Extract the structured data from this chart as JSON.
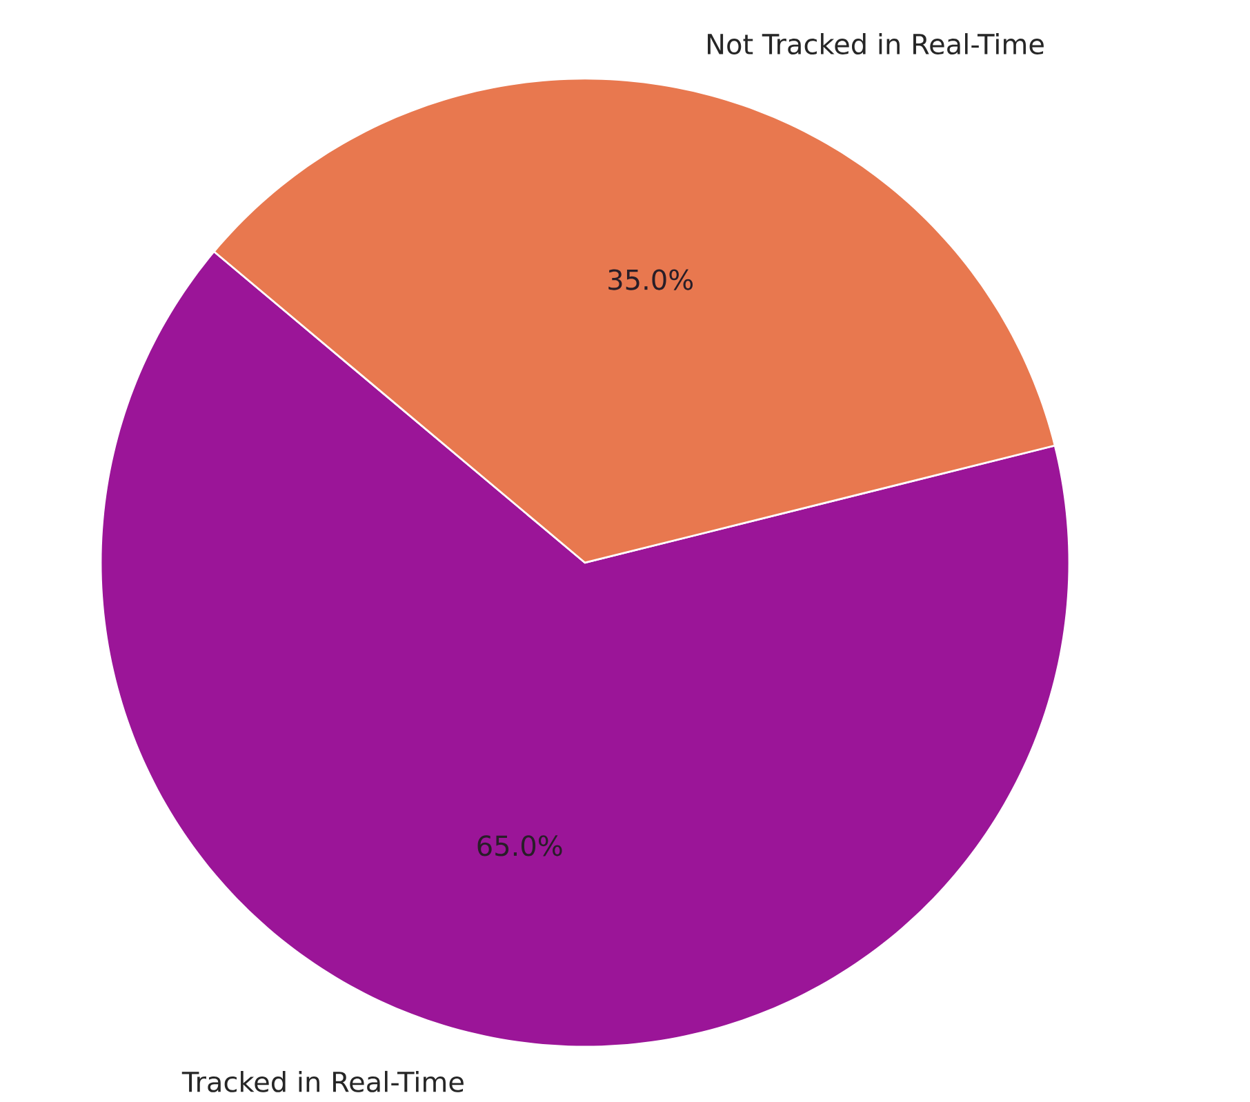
{
  "chart_data": {
    "type": "pie",
    "categories": [
      "Tracked in Real-Time",
      "Not Tracked in Real-Time"
    ],
    "values": [
      65,
      35
    ],
    "colors": [
      "#9b1598",
      "#e8784f"
    ],
    "value_labels": [
      "65.0%",
      "35.0%"
    ]
  }
}
